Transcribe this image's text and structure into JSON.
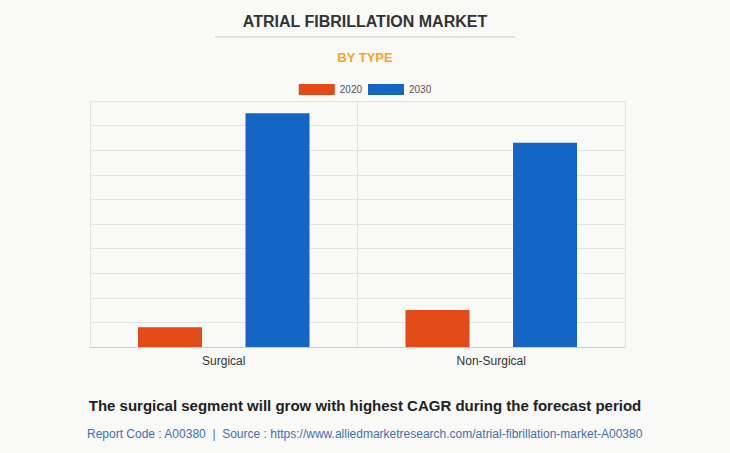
{
  "chart_data": {
    "type": "bar",
    "title": "ATRIAL FIBRILLATION MARKET",
    "subtitle": "BY TYPE",
    "categories": [
      "Surgical",
      "Non-Surgical"
    ],
    "series": [
      {
        "name": "2020",
        "color": "#e24a17",
        "values": [
          0.8,
          1.5
        ]
      },
      {
        "name": "2030",
        "color": "#1565c4",
        "values": [
          9.5,
          8.3
        ]
      }
    ],
    "ylim": [
      0,
      10
    ],
    "yticks": [
      0,
      1,
      2,
      3,
      4,
      5,
      6,
      7,
      8,
      9,
      10
    ],
    "grid": true,
    "tick_labels": "x",
    "legend": "top",
    "annotations": [
      "The surgical segment will grow with highest CAGR during the forecast period",
      "Report Code : A00380  |  Source : https://www.alliedmarketresearch.com/atrial-fibrillation-market-A00380"
    ]
  }
}
